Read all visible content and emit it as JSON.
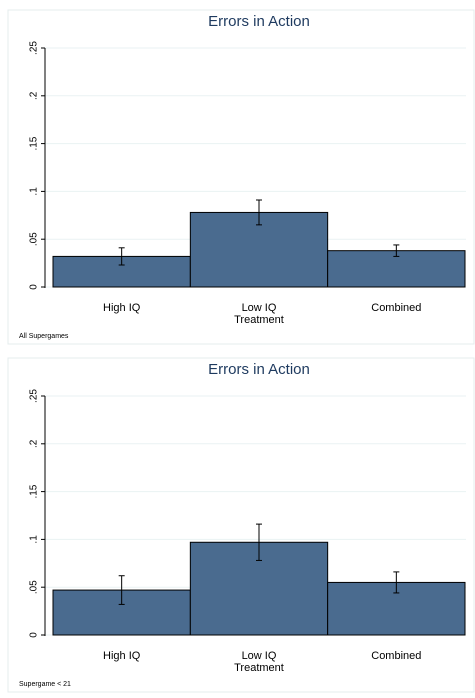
{
  "chart_data": [
    {
      "type": "bar",
      "title": "Errors in Action",
      "x_label": "Treatment",
      "note": "All Supergames",
      "categories": [
        "High IQ",
        "Low IQ",
        "Combined"
      ],
      "values": [
        0.032,
        0.078,
        0.038
      ],
      "errors": [
        0.009,
        0.013,
        0.006
      ],
      "color": "#4a6b8f",
      "ylim": [
        0,
        0.25
      ],
      "yticks": [
        0,
        {
          "value": 0.05,
          "label": ".05"
        },
        {
          "value": 0.1,
          "label": ".1"
        },
        {
          "value": 0.15,
          "label": ".15"
        },
        {
          "value": 0.2,
          "label": ".2"
        },
        {
          "value": 0.25,
          "label": ".25"
        }
      ],
      "grid": true
    },
    {
      "type": "bar",
      "title": "Errors in Action",
      "x_label": "Treatment",
      "note": "Supergame < 21",
      "categories": [
        "High IQ",
        "Low IQ",
        "Combined"
      ],
      "values": [
        0.047,
        0.097,
        0.055
      ],
      "errors": [
        0.015,
        0.019,
        0.011
      ],
      "color": "#4a6b8f",
      "ylim": [
        0,
        0.25
      ],
      "yticks": [
        0,
        {
          "value": 0.05,
          "label": ".05"
        },
        {
          "value": 0.1,
          "label": ".1"
        },
        {
          "value": 0.15,
          "label": ".15"
        },
        {
          "value": 0.2,
          "label": ".2"
        },
        {
          "value": 0.25,
          "label": ".25"
        }
      ],
      "grid": true
    }
  ]
}
